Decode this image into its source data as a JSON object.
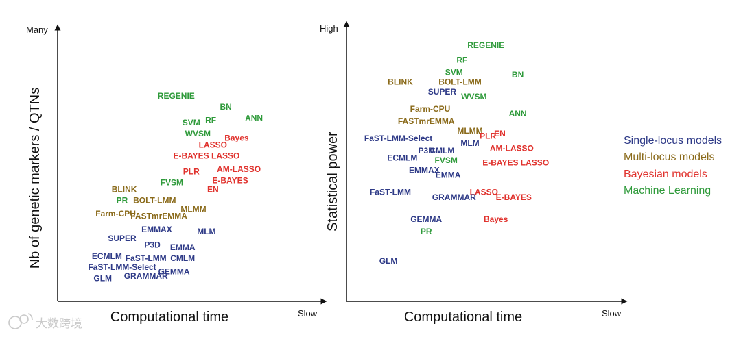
{
  "colors": {
    "single": "#2e3a87",
    "multi": "#8a6a1a",
    "bayes": "#e0322d",
    "ml": "#2e9a3a",
    "axis": "#111111"
  },
  "legend": [
    {
      "label": "Single-locus models",
      "category": "single"
    },
    {
      "label": "Multi-locus models",
      "category": "multi"
    },
    {
      "label": "Bayesian models",
      "category": "bayes"
    },
    {
      "label": "Machine Learning",
      "category": "ml"
    }
  ],
  "watermark": "大数跨境",
  "chart_data": [
    {
      "type": "scatter",
      "xlabel": "Computational time",
      "ylabel": "Nb of genetic markers / QTNs",
      "x_end_label": "Slow",
      "y_end_label": "Many",
      "xlim": [
        0,
        100
      ],
      "ylim": [
        0,
        100
      ],
      "points": [
        {
          "label": "REGENIE",
          "x": 45,
          "y": 85,
          "category": "ml"
        },
        {
          "label": "BN",
          "x": 68,
          "y": 80,
          "category": "ml"
        },
        {
          "label": "ANN",
          "x": 81,
          "y": 75,
          "category": "ml"
        },
        {
          "label": "SVM",
          "x": 52,
          "y": 73,
          "category": "ml"
        },
        {
          "label": "RF",
          "x": 61,
          "y": 74,
          "category": "ml"
        },
        {
          "label": "WVSM",
          "x": 55,
          "y": 68,
          "category": "ml"
        },
        {
          "label": "Bayes",
          "x": 73,
          "y": 66,
          "category": "bayes"
        },
        {
          "label": "LASSO",
          "x": 62,
          "y": 63,
          "category": "bayes"
        },
        {
          "label": "E-BAYES LASSO",
          "x": 59,
          "y": 58,
          "category": "bayes"
        },
        {
          "label": "AM-LASSO",
          "x": 74,
          "y": 52,
          "category": "bayes"
        },
        {
          "label": "PLR",
          "x": 52,
          "y": 51,
          "category": "bayes"
        },
        {
          "label": "FVSM",
          "x": 43,
          "y": 46,
          "category": "ml"
        },
        {
          "label": "E-BAYES",
          "x": 70,
          "y": 47,
          "category": "bayes"
        },
        {
          "label": "EN",
          "x": 62,
          "y": 43,
          "category": "bayes"
        },
        {
          "label": "BLINK",
          "x": 21,
          "y": 43,
          "category": "multi"
        },
        {
          "label": "PR",
          "x": 20,
          "y": 38,
          "category": "ml"
        },
        {
          "label": "BOLT-LMM",
          "x": 35,
          "y": 38,
          "category": "multi"
        },
        {
          "label": "MLMM",
          "x": 53,
          "y": 34,
          "category": "multi"
        },
        {
          "label": "Farm-CPU",
          "x": 17,
          "y": 32,
          "category": "multi"
        },
        {
          "label": "FASTmrEMMA",
          "x": 37,
          "y": 31,
          "category": "multi"
        },
        {
          "label": "EMMAX",
          "x": 36,
          "y": 25,
          "category": "single"
        },
        {
          "label": "MLM",
          "x": 59,
          "y": 24,
          "category": "single"
        },
        {
          "label": "SUPER",
          "x": 20,
          "y": 21,
          "category": "single"
        },
        {
          "label": "P3D",
          "x": 34,
          "y": 18,
          "category": "single"
        },
        {
          "label": "EMMA",
          "x": 48,
          "y": 17,
          "category": "single"
        },
        {
          "label": "ECMLM",
          "x": 13,
          "y": 13,
          "category": "single"
        },
        {
          "label": "FaST-LMM",
          "x": 31,
          "y": 12,
          "category": "single"
        },
        {
          "label": "CMLM",
          "x": 48,
          "y": 12,
          "category": "single"
        },
        {
          "label": "FaST-LMM-Select",
          "x": 20,
          "y": 8,
          "category": "single"
        },
        {
          "label": "GEMMA",
          "x": 44,
          "y": 6,
          "category": "single"
        },
        {
          "label": "GLM",
          "x": 11,
          "y": 3,
          "category": "single"
        },
        {
          "label": "GRAMMAR",
          "x": 31,
          "y": 4,
          "category": "single"
        }
      ]
    },
    {
      "type": "scatter",
      "xlabel": "Computational time",
      "ylabel": "Statistical power",
      "x_end_label": "Slow",
      "y_end_label": "High",
      "xlim": [
        0,
        100
      ],
      "ylim": [
        0,
        100
      ],
      "points": [
        {
          "label": "REGENIE",
          "x": 58,
          "y": 95,
          "category": "ml"
        },
        {
          "label": "RF",
          "x": 46,
          "y": 89,
          "category": "ml"
        },
        {
          "label": "SVM",
          "x": 42,
          "y": 84,
          "category": "ml"
        },
        {
          "label": "BN",
          "x": 74,
          "y": 83,
          "category": "ml"
        },
        {
          "label": "BLINK",
          "x": 15,
          "y": 80,
          "category": "multi"
        },
        {
          "label": "BOLT-LMM",
          "x": 45,
          "y": 80,
          "category": "multi"
        },
        {
          "label": "SUPER",
          "x": 36,
          "y": 76,
          "category": "single"
        },
        {
          "label": "WVSM",
          "x": 52,
          "y": 74,
          "category": "ml"
        },
        {
          "label": "Farm-CPU",
          "x": 30,
          "y": 69,
          "category": "multi"
        },
        {
          "label": "ANN",
          "x": 74,
          "y": 67,
          "category": "ml"
        },
        {
          "label": "FASTmrEMMA",
          "x": 28,
          "y": 64,
          "category": "multi"
        },
        {
          "label": "MLMM",
          "x": 50,
          "y": 60,
          "category": "multi"
        },
        {
          "label": "PLR",
          "x": 59,
          "y": 58,
          "category": "bayes"
        },
        {
          "label": "EN",
          "x": 65,
          "y": 59,
          "category": "bayes"
        },
        {
          "label": "FaST-LMM-Select",
          "x": 14,
          "y": 57,
          "category": "single"
        },
        {
          "label": "MLM",
          "x": 50,
          "y": 55,
          "category": "single"
        },
        {
          "label": "AM-LASSO",
          "x": 71,
          "y": 53,
          "category": "bayes"
        },
        {
          "label": "P3D",
          "x": 28,
          "y": 52,
          "category": "single"
        },
        {
          "label": "CMLM",
          "x": 36,
          "y": 52,
          "category": "single"
        },
        {
          "label": "ECMLM",
          "x": 16,
          "y": 49,
          "category": "single"
        },
        {
          "label": "FVSM",
          "x": 38,
          "y": 48,
          "category": "ml"
        },
        {
          "label": "E-BAYES LASSO",
          "x": 73,
          "y": 47,
          "category": "bayes"
        },
        {
          "label": "EMMAX",
          "x": 27,
          "y": 44,
          "category": "single"
        },
        {
          "label": "EMMA",
          "x": 39,
          "y": 42,
          "category": "single"
        },
        {
          "label": "FaST-LMM",
          "x": 10,
          "y": 35,
          "category": "single"
        },
        {
          "label": "LASSO",
          "x": 57,
          "y": 35,
          "category": "bayes"
        },
        {
          "label": "GRAMMAR",
          "x": 42,
          "y": 33,
          "category": "single"
        },
        {
          "label": "E-BAYES",
          "x": 72,
          "y": 33,
          "category": "bayes"
        },
        {
          "label": "GEMMA",
          "x": 28,
          "y": 24,
          "category": "single"
        },
        {
          "label": "Bayes",
          "x": 63,
          "y": 24,
          "category": "bayes"
        },
        {
          "label": "PR",
          "x": 28,
          "y": 19,
          "category": "ml"
        },
        {
          "label": "GLM",
          "x": 9,
          "y": 7,
          "category": "single"
        }
      ]
    }
  ]
}
